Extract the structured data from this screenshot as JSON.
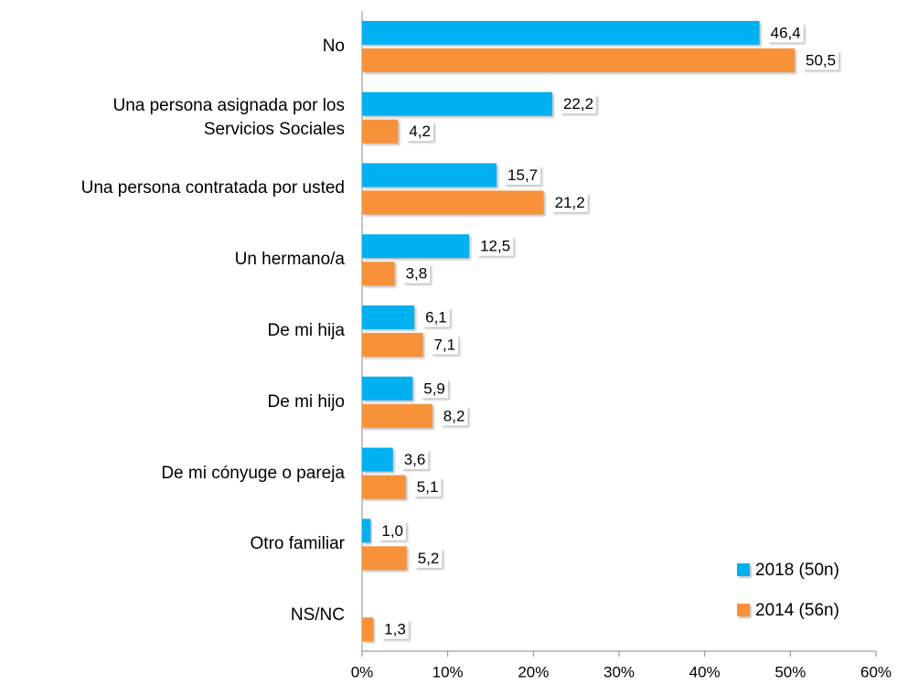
{
  "chart_data": {
    "type": "hbar",
    "categories": [
      "No",
      "Una persona asignada por los\nServicios Sociales",
      "Una persona contratada por usted",
      "Un hermano/a",
      "De mi hija",
      "De mi hijo",
      "De mi cónyuge o pareja",
      "Otro familiar",
      "NS/NC"
    ],
    "series": [
      {
        "name": "2018 (50n)",
        "color": "#00b0f0",
        "values": [
          46.4,
          22.2,
          15.7,
          12.5,
          6.1,
          5.9,
          3.6,
          1.0,
          null
        ],
        "value_labels": [
          "46,4",
          "22,2",
          "15,7",
          "12,5",
          "6,1",
          "5,9",
          "3,6",
          "1,0",
          null
        ]
      },
      {
        "name": "2014 (56n)",
        "color": "#f7923a",
        "values": [
          50.5,
          4.2,
          21.2,
          3.8,
          7.1,
          8.2,
          5.1,
          5.2,
          1.3
        ],
        "value_labels": [
          "50,5",
          "4,2",
          "21,2",
          "3,8",
          "7,1",
          "8,2",
          "5,1",
          "5,2",
          "1,3"
        ]
      }
    ],
    "xlim": [
      0,
      60
    ],
    "xticks": [
      {
        "value": 0,
        "label": "0%"
      },
      {
        "value": 10,
        "label": "10%"
      },
      {
        "value": 20,
        "label": "20%"
      },
      {
        "value": 30,
        "label": "30%"
      },
      {
        "value": 40,
        "label": "40%"
      },
      {
        "value": 50,
        "label": "50%"
      },
      {
        "value": 60,
        "label": "60%"
      }
    ],
    "grid": false,
    "legend": "lower right"
  }
}
